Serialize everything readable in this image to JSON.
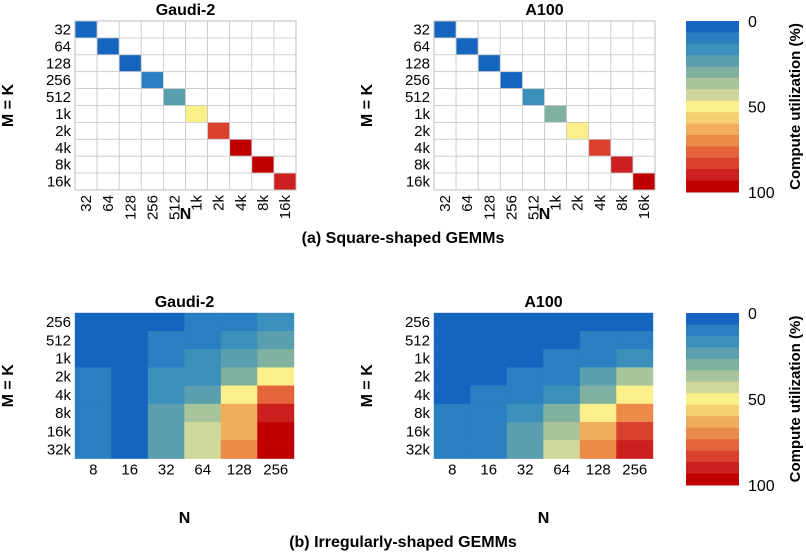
{
  "captions": {
    "square": "(a) Square-shaped GEMMs",
    "irregular": "(b) Irregularly-shaped GEMMs"
  },
  "colorbar": {
    "title": "Compute utilization (%)",
    "ticks": [
      "0",
      "50",
      "100"
    ],
    "range": [
      0,
      100
    ],
    "colors": [
      "#1565c0",
      "#2a7fc0",
      "#3a8fbb",
      "#5a9fb0",
      "#7fb0a0",
      "#a8c49a",
      "#cfd89a",
      "#fbef8a",
      "#f6cf70",
      "#f2ad5c",
      "#ec8a4a",
      "#e4653a",
      "#d9412c",
      "#cc1f1f",
      "#c00000"
    ]
  },
  "chart_data": [
    {
      "type": "heatmap",
      "panel": "a",
      "title": "Gaudi-2",
      "xlabel": "N",
      "ylabel": "M = K",
      "x_categories": [
        "32",
        "64",
        "128",
        "256",
        "512",
        "1k",
        "2k",
        "4k",
        "8k",
        "16k"
      ],
      "y_categories": [
        "32",
        "64",
        "128",
        "256",
        "512",
        "1k",
        "2k",
        "4k",
        "8k",
        "16k"
      ],
      "diagonal_only": true,
      "values": [
        2,
        3,
        4,
        8,
        20,
        48,
        80,
        95,
        100,
        88
      ],
      "value_range": [
        0,
        100
      ]
    },
    {
      "type": "heatmap",
      "panel": "a",
      "title": "A100",
      "xlabel": "N",
      "ylabel": "M = K",
      "x_categories": [
        "32",
        "64",
        "128",
        "256",
        "512",
        "1k",
        "2k",
        "4k",
        "8k",
        "16k"
      ],
      "y_categories": [
        "32",
        "64",
        "128",
        "256",
        "512",
        "1k",
        "2k",
        "4k",
        "8k",
        "16k"
      ],
      "diagonal_only": true,
      "values": [
        2,
        3,
        4,
        6,
        14,
        30,
        50,
        85,
        93,
        98
      ],
      "value_range": [
        0,
        100
      ]
    },
    {
      "type": "heatmap",
      "panel": "b",
      "title": "Gaudi-2",
      "xlabel": "N",
      "ylabel": "M = K",
      "x_categories": [
        "8",
        "16",
        "32",
        "64",
        "128",
        "256"
      ],
      "y_categories": [
        "256",
        "512",
        "1k",
        "2k",
        "4k",
        "8k",
        "16k",
        "32k"
      ],
      "values": [
        [
          4,
          3,
          6,
          8,
          12,
          16
        ],
        [
          5,
          4,
          7,
          10,
          16,
          24
        ],
        [
          6,
          4,
          9,
          15,
          22,
          28
        ],
        [
          7,
          4,
          14,
          18,
          33,
          47
        ],
        [
          10,
          4,
          15,
          25,
          50,
          75
        ],
        [
          12,
          4,
          20,
          38,
          62,
          92
        ],
        [
          12,
          4,
          22,
          40,
          65,
          97
        ],
        [
          12,
          4,
          24,
          42,
          68,
          95
        ]
      ],
      "value_range": [
        0,
        100
      ]
    },
    {
      "type": "heatmap",
      "panel": "b",
      "title": "A100",
      "xlabel": "N",
      "ylabel": "M = K",
      "x_categories": [
        "8",
        "16",
        "32",
        "64",
        "128",
        "256"
      ],
      "y_categories": [
        "256",
        "512",
        "1k",
        "2k",
        "4k",
        "8k",
        "16k",
        "32k"
      ],
      "values": [
        [
          3,
          3,
          3,
          4,
          4,
          5
        ],
        [
          3,
          3,
          4,
          5,
          7,
          9
        ],
        [
          4,
          4,
          5,
          7,
          11,
          17
        ],
        [
          5,
          5,
          8,
          12,
          22,
          35
        ],
        [
          6,
          7,
          11,
          19,
          33,
          50
        ],
        [
          8,
          9,
          16,
          27,
          50,
          70
        ],
        [
          9,
          11,
          20,
          36,
          63,
          86
        ],
        [
          10,
          13,
          22,
          40,
          68,
          92
        ]
      ],
      "value_range": [
        0,
        100
      ]
    }
  ]
}
